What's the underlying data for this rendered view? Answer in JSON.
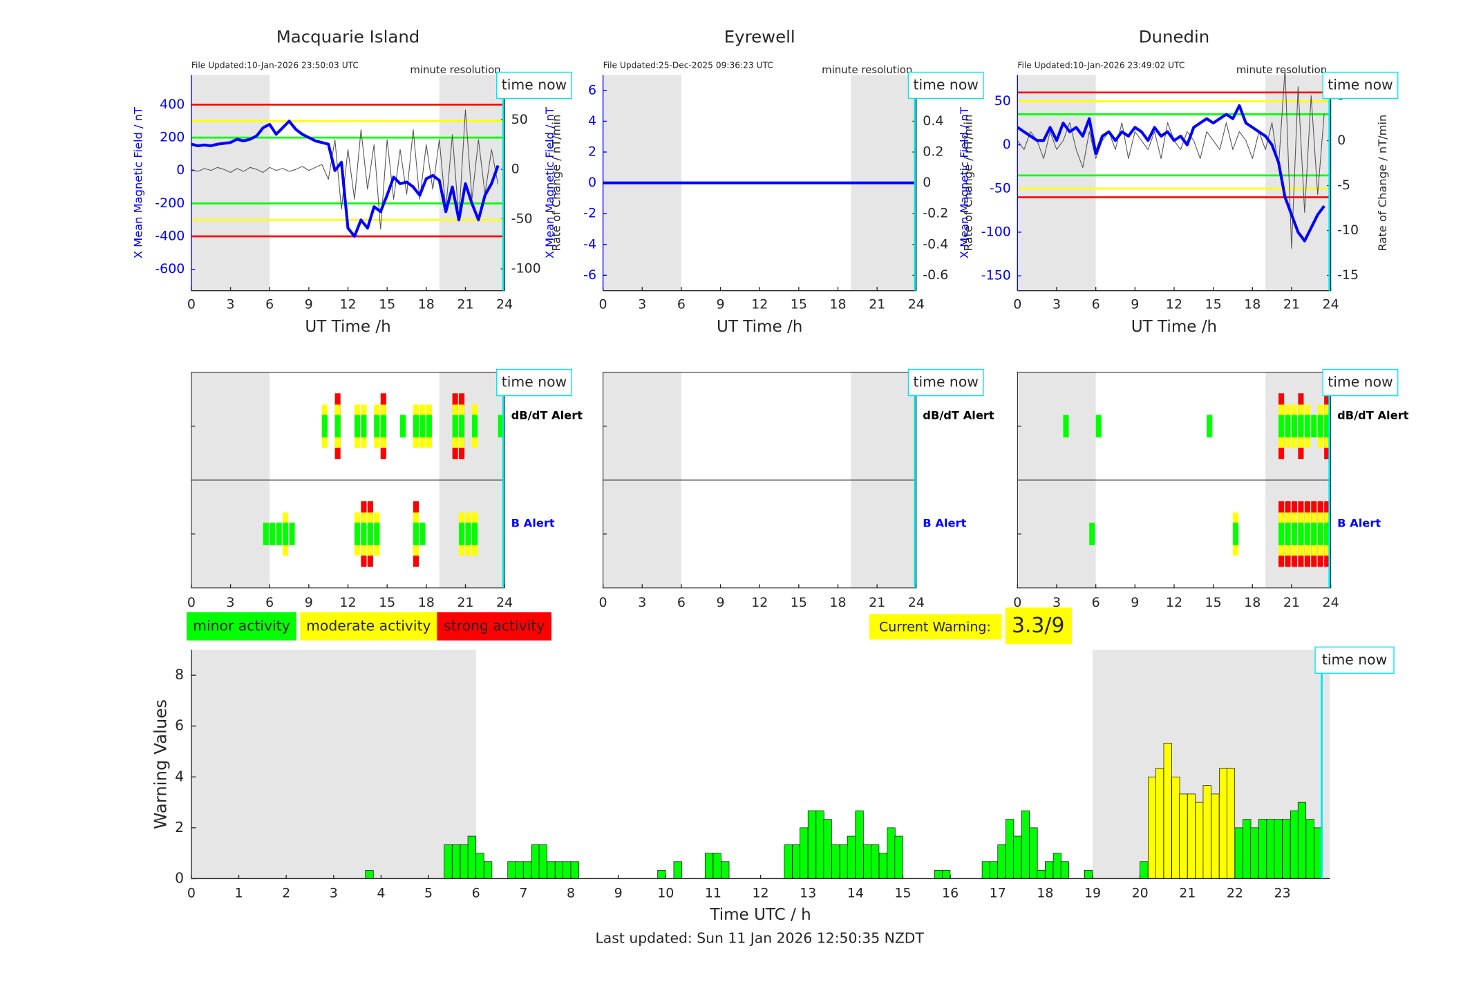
{
  "chart_data": [
    {
      "type": "line",
      "title": "Macquarie Island",
      "file_updated": "File Updated:10-Jan-2026 23:50:03 UTC",
      "resolution": "minute resolution",
      "time_now_label": "time now",
      "time_now": 23.9,
      "xlabel": "UT Time /h",
      "ylabel": "X Mean Magnetic Field / nT",
      "y2label": "Rate of Change / nT/min",
      "xlim": [
        0,
        24
      ],
      "xticks": [
        0,
        3,
        6,
        9,
        12,
        15,
        18,
        21,
        24
      ],
      "ylim": [
        -730,
        580
      ],
      "yticks": [
        -600,
        -400,
        -200,
        0,
        200,
        400
      ],
      "y2lim": [
        -122,
        95
      ],
      "y2ticks": [
        -100,
        -50,
        0,
        50
      ],
      "shade": [
        [
          0,
          6
        ],
        [
          19,
          24
        ]
      ],
      "thresholds": [
        400,
        300,
        200,
        -200,
        -300,
        -400
      ],
      "threshold_colors": [
        "#ff0000",
        "#ffff00",
        "#00ff00",
        "#00ff00",
        "#ffff00",
        "#ff0000"
      ],
      "x": [
        0,
        0.5,
        1,
        1.5,
        2,
        2.5,
        3,
        3.5,
        4,
        4.5,
        5,
        5.5,
        6,
        6.5,
        7,
        7.5,
        8,
        8.5,
        9,
        9.5,
        10,
        10.5,
        11,
        11.5,
        12,
        12.5,
        13,
        13.5,
        14,
        14.5,
        15,
        15.5,
        16,
        16.5,
        17,
        17.5,
        18,
        18.5,
        19,
        19.5,
        20,
        20.5,
        21,
        21.5,
        22,
        22.5,
        23,
        23.5
      ],
      "series": [
        {
          "color": "#555555",
          "axis": "y2",
          "values": [
            0,
            -2,
            1,
            -1,
            2,
            0,
            -3,
            1,
            -2,
            2,
            0,
            -3,
            2,
            -1,
            1,
            -2,
            0,
            3,
            -1,
            2,
            5,
            -10,
            30,
            -40,
            20,
            -30,
            40,
            -20,
            25,
            -60,
            30,
            -30,
            20,
            -25,
            40,
            -30,
            25,
            -20,
            30,
            -40,
            35,
            -50,
            60,
            -30,
            30,
            -25,
            20,
            -15
          ]
        },
        {
          "color": "#0000ff",
          "values": [
            160,
            150,
            155,
            150,
            160,
            165,
            170,
            190,
            180,
            190,
            210,
            260,
            280,
            220,
            260,
            300,
            250,
            220,
            200,
            180,
            170,
            160,
            0,
            50,
            -350,
            -400,
            -300,
            -350,
            -220,
            -250,
            -150,
            -40,
            -80,
            -70,
            -100,
            -150,
            -50,
            -30,
            -60,
            -250,
            -100,
            -300,
            -80,
            -200,
            -300,
            -150,
            -80,
            30
          ]
        }
      ]
    },
    {
      "type": "line",
      "title": "Eyrewell",
      "file_updated": "File Updated:25-Dec-2025 09:36:23 UTC",
      "resolution": "minute resolution",
      "time_now_label": "time now",
      "time_now": 23.9,
      "xlabel": "UT Time /h",
      "ylabel": "X Mean Magnetic Field / nT",
      "y2label": "Rate of Change / nT/min",
      "xlim": [
        0,
        24
      ],
      "xticks": [
        0,
        3,
        6,
        9,
        12,
        15,
        18,
        21,
        24
      ],
      "ylim": [
        -7,
        7
      ],
      "yticks": [
        -6,
        -4,
        -2,
        0,
        2,
        4,
        6
      ],
      "y2lim": [
        -0.7,
        0.7
      ],
      "y2ticks": [
        -0.6,
        -0.4,
        -0.2,
        0,
        0.2,
        0.4,
        0.6
      ],
      "shade": [
        [
          0,
          6
        ],
        [
          19,
          24
        ]
      ],
      "x": [
        0,
        24
      ],
      "series": [
        {
          "color": "#0000ff",
          "values": [
            0,
            0
          ]
        }
      ]
    },
    {
      "type": "line",
      "title": "Dunedin",
      "file_updated": "File Updated:10-Jan-2026 23:49:02 UTC",
      "resolution": "minute resolution",
      "time_now_label": "time now",
      "time_now": 23.9,
      "xlabel": "UT Time /h",
      "ylabel": "X Mean Magnetic Field / nT",
      "y2label": "Rate of Change / nT/min",
      "xlim": [
        0,
        24
      ],
      "xticks": [
        0,
        3,
        6,
        9,
        12,
        15,
        18,
        21,
        24
      ],
      "ylim": [
        -167,
        80
      ],
      "yticks": [
        -150,
        -100,
        -50,
        0,
        50
      ],
      "y2lim": [
        -16.7,
        7.3
      ],
      "y2ticks": [
        -15,
        -10,
        -5,
        0,
        5
      ],
      "shade": [
        [
          0,
          6
        ],
        [
          19,
          24
        ]
      ],
      "thresholds": [
        60,
        50,
        35,
        -35,
        -50,
        -60
      ],
      "threshold_colors": [
        "#ff0000",
        "#ffff00",
        "#00ff00",
        "#00ff00",
        "#ffff00",
        "#ff0000"
      ],
      "x": [
        0,
        0.5,
        1,
        1.5,
        2,
        2.5,
        3,
        3.5,
        4,
        4.5,
        5,
        5.5,
        6,
        6.5,
        7,
        7.5,
        8,
        8.5,
        9,
        9.5,
        10,
        10.5,
        11,
        11.5,
        12,
        12.5,
        13,
        13.5,
        14,
        14.5,
        15,
        15.5,
        16,
        16.5,
        17,
        17.5,
        18,
        18.5,
        19,
        19.5,
        20,
        20.5,
        21,
        21.5,
        22,
        22.5,
        23,
        23.5
      ],
      "series": [
        {
          "color": "#555555",
          "axis": "y2",
          "values": [
            0,
            -1,
            1,
            0,
            -2,
            1,
            -1,
            0,
            2,
            -1,
            -3,
            1,
            -2,
            0,
            1,
            -1,
            2,
            -2,
            1,
            0,
            -1,
            1,
            -2,
            2,
            0,
            -1,
            1,
            0,
            -2,
            1,
            0,
            -1,
            2,
            -1,
            1,
            0,
            -2,
            1,
            -1,
            2,
            -3,
            8,
            -12,
            6,
            -8,
            5,
            -6,
            3
          ]
        },
        {
          "color": "#0000ff",
          "values": [
            20,
            15,
            10,
            5,
            5,
            20,
            5,
            25,
            15,
            20,
            10,
            30,
            -10,
            10,
            15,
            5,
            15,
            10,
            20,
            15,
            5,
            20,
            10,
            15,
            5,
            10,
            0,
            20,
            25,
            30,
            25,
            30,
            35,
            30,
            45,
            25,
            20,
            15,
            10,
            0,
            -20,
            -60,
            -80,
            -100,
            -110,
            -95,
            -80,
            -70
          ]
        }
      ]
    },
    {
      "type": "alert",
      "time_now_label": "time now",
      "time_now": 23.9,
      "xlim": [
        0,
        24
      ],
      "xticks": [
        0,
        3,
        6,
        9,
        12,
        15,
        18,
        21,
        24
      ],
      "shade": [
        [
          0,
          6
        ],
        [
          19,
          24
        ]
      ],
      "rows": [
        {
          "label": "dB/dT Alert",
          "color": "#000000",
          "x": [
            10,
            11,
            12.5,
            13,
            14,
            14.5,
            16,
            17,
            17.5,
            18,
            20,
            20.5,
            21.5,
            23.5
          ],
          "levels": [
            2,
            3,
            2,
            2,
            2,
            3,
            1,
            2,
            2,
            2,
            3,
            3,
            2,
            1
          ]
        },
        {
          "label": "B Alert",
          "color": "#0000ff",
          "x": [
            5.5,
            6,
            6.5,
            7,
            7.5,
            12.5,
            13,
            13.5,
            14,
            17,
            17.5,
            20.5,
            21,
            21.5
          ],
          "levels": [
            1,
            1,
            1,
            2,
            1,
            2,
            3,
            3,
            2,
            3,
            1,
            2,
            2,
            2
          ]
        }
      ]
    },
    {
      "type": "alert",
      "time_now_label": "time now",
      "time_now": 23.9,
      "xlim": [
        0,
        24
      ],
      "xticks": [
        0,
        3,
        6,
        9,
        12,
        15,
        18,
        21,
        24
      ],
      "shade": [
        [
          0,
          6
        ],
        [
          19,
          24
        ]
      ],
      "rows": [
        {
          "label": "dB/dT Alert",
          "color": "#000000",
          "x": [],
          "levels": []
        },
        {
          "label": "B Alert",
          "color": "#0000ff",
          "x": [],
          "levels": []
        }
      ]
    },
    {
      "type": "alert",
      "time_now_label": "time now",
      "time_now": 23.9,
      "xlim": [
        0,
        24
      ],
      "xticks": [
        0,
        3,
        6,
        9,
        12,
        15,
        18,
        21,
        24
      ],
      "shade": [
        [
          0,
          6
        ],
        [
          19,
          24
        ]
      ],
      "rows": [
        {
          "label": "dB/dT Alert",
          "color": "#000000",
          "x": [
            3.5,
            6,
            14.5,
            20,
            20.5,
            21,
            21.5,
            22,
            22.5,
            23,
            23.5
          ],
          "levels": [
            1,
            1,
            1,
            3,
            2,
            2,
            3,
            2,
            1,
            2,
            3
          ]
        },
        {
          "label": "B Alert",
          "color": "#0000ff",
          "x": [
            5.5,
            16.5,
            20,
            20.5,
            21,
            21.5,
            22,
            22.5,
            23,
            23.5
          ],
          "levels": [
            1,
            2,
            3,
            3,
            3,
            3,
            3,
            3,
            3,
            3
          ]
        }
      ]
    },
    {
      "type": "bar",
      "time_now_label": "time now",
      "time_now": 23.83,
      "xlabel": "Time UTC / h",
      "ylabel": "Warning Values",
      "xlim": [
        0,
        24
      ],
      "xticks": [
        0,
        1,
        2,
        3,
        4,
        5,
        6,
        7,
        8,
        9,
        10,
        11,
        12,
        13,
        14,
        15,
        16,
        17,
        18,
        19,
        20,
        21,
        22,
        23
      ],
      "ylim": [
        0,
        9
      ],
      "yticks": [
        0,
        2,
        4,
        6,
        8
      ],
      "shade": [
        [
          0,
          6
        ],
        [
          19,
          24
        ]
      ],
      "series": [
        {
          "color": "#00ff00",
          "x": [
            3.67,
            5.33,
            5.5,
            5.67,
            5.83,
            6,
            6.17,
            6.67,
            6.83,
            7,
            7.17,
            7.33,
            7.5,
            7.67,
            7.83,
            8,
            9.83,
            10.17,
            10.83,
            11,
            11.17,
            12.5,
            12.67,
            12.83,
            13,
            13.17,
            13.33,
            13.5,
            13.67,
            13.83,
            14,
            14.17,
            14.33,
            14.5,
            14.67,
            14.83,
            15.67,
            15.83,
            16.67,
            16.83,
            17,
            17.17,
            17.33,
            17.5,
            17.67,
            17.83,
            18,
            18.17,
            18.33,
            18.83,
            20,
            22,
            22.17,
            22.33,
            22.5,
            22.67,
            22.83,
            23,
            23.17,
            23.33,
            23.5,
            23.67
          ],
          "values": [
            0.33,
            1.33,
            1.33,
            1.33,
            1.67,
            1,
            0.67,
            0.67,
            0.67,
            0.67,
            1.33,
            1.33,
            0.67,
            0.67,
            0.67,
            0.67,
            0.33,
            0.67,
            1,
            1,
            0.67,
            1.33,
            1.33,
            2,
            2.67,
            2.67,
            2.33,
            1.33,
            1.33,
            1.67,
            2.67,
            1.33,
            1.33,
            1,
            2,
            1.67,
            0.33,
            0.33,
            0.67,
            0.67,
            1.33,
            2.33,
            1.67,
            2.67,
            2,
            0.33,
            0.67,
            1,
            0.67,
            0.33,
            0.67,
            2,
            2.33,
            2,
            2.33,
            2.33,
            2.33,
            2.33,
            2.67,
            3,
            2.33,
            2
          ]
        },
        {
          "color": "#ffff00",
          "x": [
            20.17,
            20.33,
            20.5,
            20.67,
            20.83,
            21,
            21.17,
            21.33,
            21.5,
            21.67,
            21.83
          ],
          "values": [
            4,
            4.33,
            5.33,
            4,
            3.33,
            3.33,
            3,
            3.67,
            3.33,
            4.33,
            4.33
          ]
        }
      ]
    }
  ],
  "legend": [
    {
      "label": "minor activity",
      "color": "#00ff00"
    },
    {
      "label": "moderate activity",
      "color": "#ffff00"
    },
    {
      "label": "strong activity",
      "color": "#ff0000"
    }
  ],
  "current_warning": {
    "label": "Current Warning:",
    "text": "3.3/9"
  },
  "last_updated": "Last updated: Sun 11 Jan 2026 12:50:35 NZDT"
}
